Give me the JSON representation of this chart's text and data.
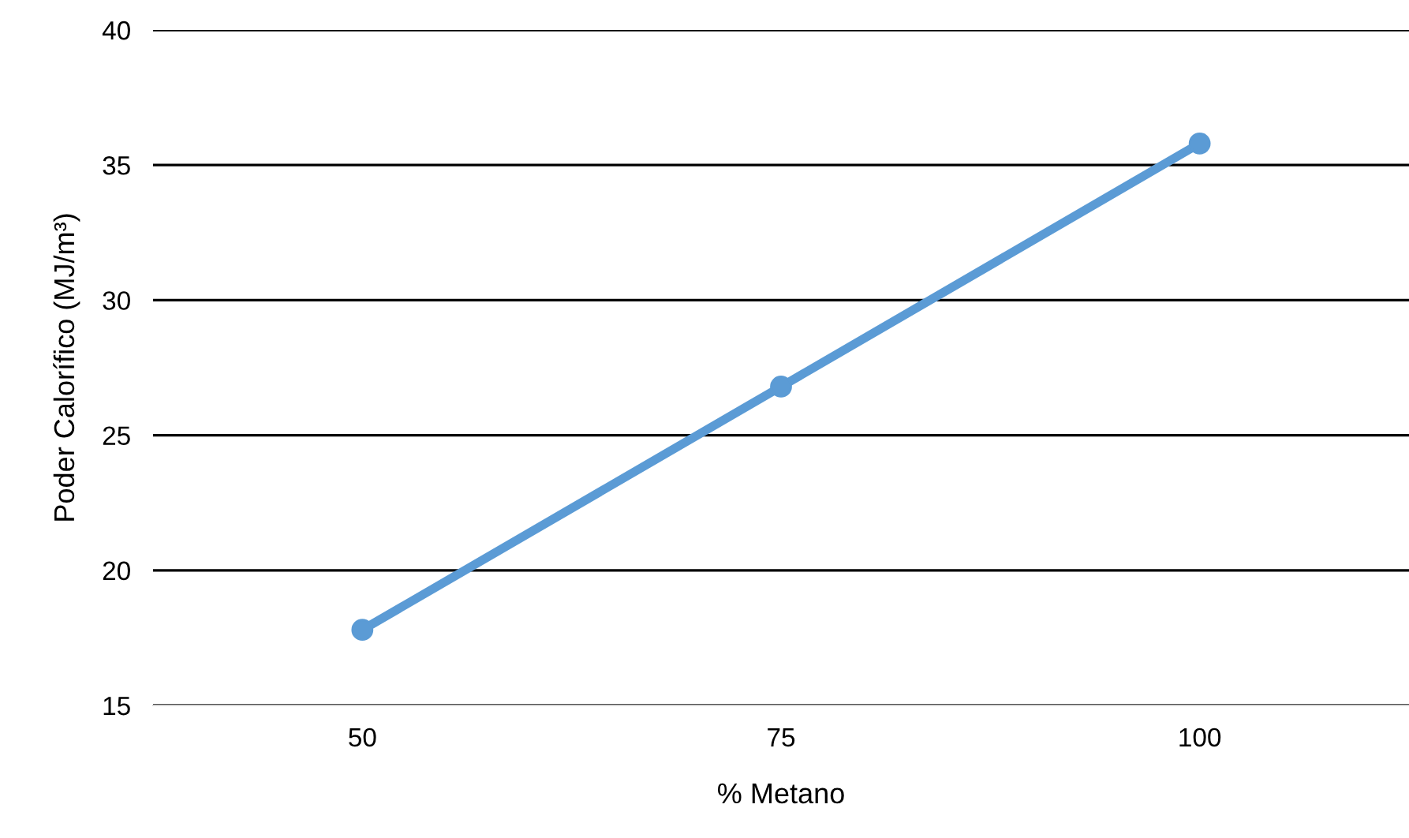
{
  "chart_data": {
    "type": "line",
    "xlabel": "% Metano",
    "ylabel": "Poder Calorífico (MJ/m³)",
    "categories": [
      "50",
      "75",
      "100"
    ],
    "series": [
      {
        "color": "#5b9bd5",
        "values": [
          17.8,
          26.8,
          35.8
        ]
      }
    ],
    "ylim": [
      15,
      40
    ],
    "yticks": [
      15,
      20,
      25,
      30,
      35,
      40
    ],
    "grid": "y",
    "marker": "circle",
    "line_style": "solid"
  }
}
